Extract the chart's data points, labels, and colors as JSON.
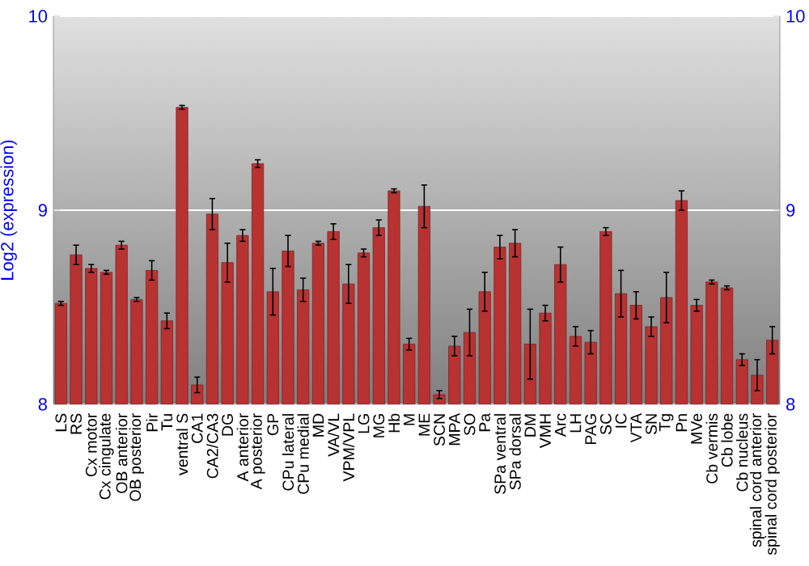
{
  "chart_data": {
    "type": "bar",
    "ylabel": "Log2 (expression)",
    "categories": [
      "LS",
      "RS",
      "Cx motor",
      "Cx cingulate",
      "OB anterior",
      "OB posterior",
      "Pir",
      "Tu",
      "ventral S",
      "CA1",
      "CA2/CA3",
      "DG",
      "A anterior",
      "A posterior",
      "GP",
      "CPu lateral",
      "CPu medial",
      "MD",
      "VA/VL",
      "VPM/VPL",
      "LG",
      "MG",
      "Hb",
      "M",
      "ME",
      "SCN",
      "MPA",
      "SO",
      "Pa",
      "SPa ventral",
      "SPa dorsal",
      "DM",
      "VMH",
      "Arc",
      "LH",
      "PAG",
      "SC",
      "IC",
      "VTA",
      "SN",
      "Tg",
      "Pn",
      "MVe",
      "Cb vermis",
      "Cb lobe",
      "Cb nucleus",
      "spinal cord anterior",
      "spinal cord posterior"
    ],
    "values": [
      8.52,
      8.77,
      8.7,
      8.68,
      8.82,
      8.54,
      8.69,
      8.43,
      9.53,
      8.1,
      8.98,
      8.73,
      8.87,
      9.24,
      8.58,
      8.79,
      8.59,
      8.83,
      8.89,
      8.62,
      8.78,
      8.91,
      9.1,
      8.31,
      9.02,
      8.05,
      8.3,
      8.37,
      8.58,
      8.81,
      8.83,
      8.31,
      8.47,
      8.72,
      8.35,
      8.32,
      8.89,
      8.57,
      8.51,
      8.4,
      8.55,
      9.05,
      8.51,
      8.63,
      8.6,
      8.23,
      8.15,
      8.33
    ],
    "errors": [
      0.01,
      0.05,
      0.02,
      0.01,
      0.02,
      0.01,
      0.05,
      0.04,
      0.01,
      0.04,
      0.08,
      0.1,
      0.03,
      0.02,
      0.12,
      0.08,
      0.06,
      0.01,
      0.04,
      0.1,
      0.02,
      0.04,
      0.01,
      0.03,
      0.11,
      0.02,
      0.05,
      0.12,
      0.1,
      0.06,
      0.07,
      0.18,
      0.04,
      0.09,
      0.05,
      0.06,
      0.02,
      0.12,
      0.07,
      0.05,
      0.13,
      0.05,
      0.03,
      0.01,
      0.01,
      0.03,
      0.08,
      0.07
    ],
    "color": "#b83232",
    "ylim": [
      8,
      10
    ],
    "yticks": [
      8,
      9,
      10
    ],
    "y2lim": [
      8,
      10
    ],
    "y2ticks": [
      8,
      9,
      10
    ],
    "grid": "y"
  }
}
